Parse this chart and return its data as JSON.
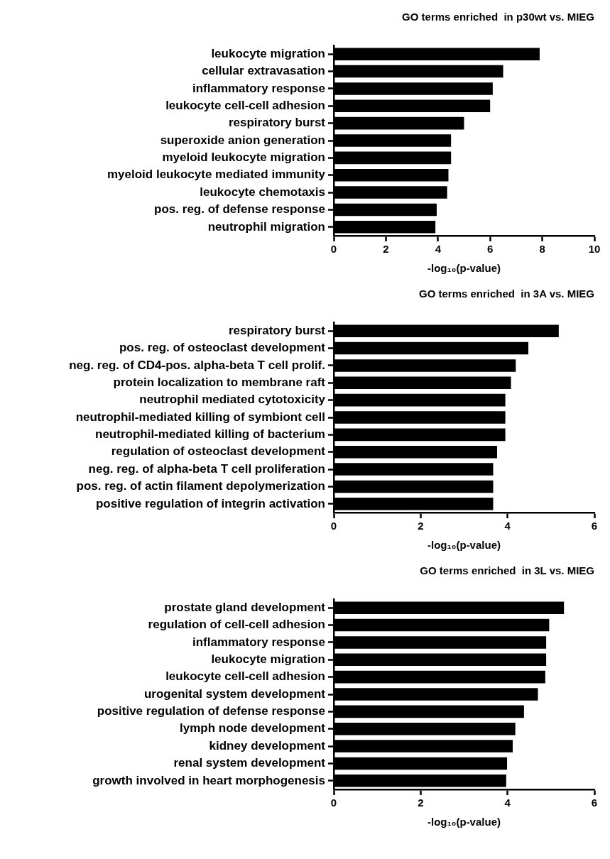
{
  "chart_data": [
    {
      "type": "bar",
      "orientation": "horizontal",
      "title": "GO terms enriched  in p30wt vs. MIEG",
      "xlabel": "-log₁₀(p-value)",
      "color": "#000000",
      "xlim": [
        0,
        10
      ],
      "xticks": [
        0,
        2,
        4,
        6,
        8,
        10
      ],
      "categories": [
        "leukocyte migration",
        "cellular extravasation",
        "inflammatory response",
        "leukocyte cell-cell adhesion",
        "respiratory burst",
        "superoxide anion generation",
        "myeloid leukocyte migration",
        "myeloid leukocyte mediated immunity",
        "leukocyte chemotaxis",
        "pos. reg. of defense response",
        "neutrophil migration"
      ],
      "values": [
        7.9,
        6.5,
        6.1,
        6.0,
        5.0,
        4.5,
        4.5,
        4.4,
        4.35,
        3.95,
        3.9
      ]
    },
    {
      "type": "bar",
      "orientation": "horizontal",
      "title": "GO terms enriched  in 3A vs. MIEG",
      "xlabel": "-log₁₀(p-value)",
      "color": "#000000",
      "xlim": [
        0,
        6
      ],
      "xticks": [
        0,
        2,
        4,
        6
      ],
      "categories": [
        "respiratory burst",
        "pos. reg. of osteoclast development",
        "neg. reg. of CD4-pos. alpha-beta T cell prolif.",
        "protein localization to membrane raft",
        "neutrophil mediated cytotoxicity",
        "neutrophil-mediated killing of symbiont cell",
        "neutrophil-mediated killing of bacterium",
        "regulation of osteoclast development",
        "neg. reg. of alpha-beta T cell proliferation",
        "pos. reg. of actin filament depolymerization",
        "positive regulation of integrin activation"
      ],
      "values": [
        5.18,
        4.48,
        4.19,
        4.08,
        3.95,
        3.95,
        3.95,
        3.76,
        3.67,
        3.67,
        3.67
      ]
    },
    {
      "type": "bar",
      "orientation": "horizontal",
      "title": "GO terms enriched  in 3L vs. MIEG",
      "xlabel": "-log₁₀(p-value)",
      "color": "#000000",
      "xlim": [
        0,
        6
      ],
      "xticks": [
        0,
        2,
        4,
        6
      ],
      "categories": [
        "prostate gland development",
        "regulation of cell-cell adhesion",
        "inflammatory response",
        "leukocyte migration",
        "leukocyte cell-cell adhesion",
        "urogenital system development",
        "positive regulation of defense response",
        "lymph node development",
        "kidney development",
        "renal system development",
        "growth involved in heart morphogenesis"
      ],
      "values": [
        5.3,
        4.96,
        4.89,
        4.89,
        4.87,
        4.7,
        4.38,
        4.18,
        4.12,
        3.99,
        3.97
      ]
    }
  ]
}
